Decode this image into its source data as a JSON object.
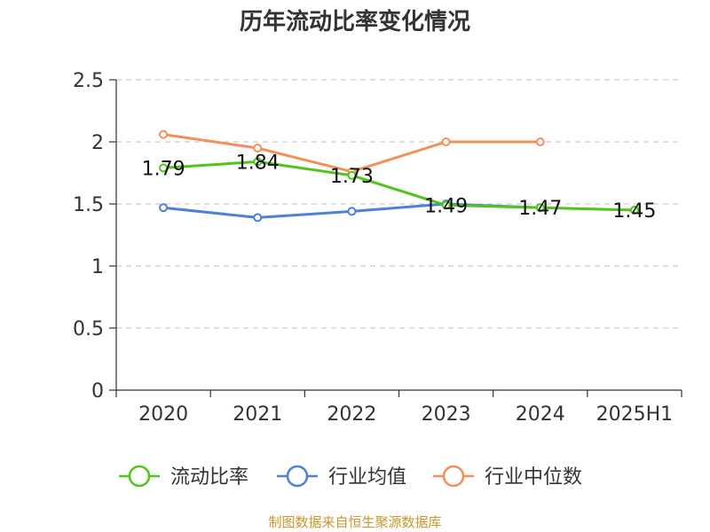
{
  "title": "历年流动比率变化情况",
  "source": "制图数据来自恒生聚源数据库",
  "chart_data": {
    "type": "line",
    "title": "历年流动比率变化情况",
    "categories": [
      "2020",
      "2021",
      "2022",
      "2023",
      "2024",
      "2025H1"
    ],
    "ylim": [
      0,
      2.5
    ],
    "yticks": [
      "0",
      "0.5",
      "1",
      "1.5",
      "2",
      "2.5"
    ],
    "grid": "horizontal dashed",
    "legend_position": "bottom",
    "series": [
      {
        "name": "流动比率",
        "color": "#52c41a",
        "values": [
          1.79,
          1.84,
          1.73,
          1.49,
          1.47,
          1.45
        ],
        "labels": [
          "1.79",
          "1.84",
          "1.73",
          "1.49",
          "1.47",
          "1.45"
        ],
        "show_labels": true
      },
      {
        "name": "行业均值",
        "color": "#4e7fd9",
        "values": [
          1.47,
          1.39,
          1.44,
          1.5,
          1.47,
          null
        ],
        "show_labels": false
      },
      {
        "name": "行业中位数",
        "color": "#f58f5a",
        "values": [
          2.06,
          1.95,
          1.76,
          2.0,
          2.0,
          null
        ],
        "show_labels": false
      }
    ]
  }
}
